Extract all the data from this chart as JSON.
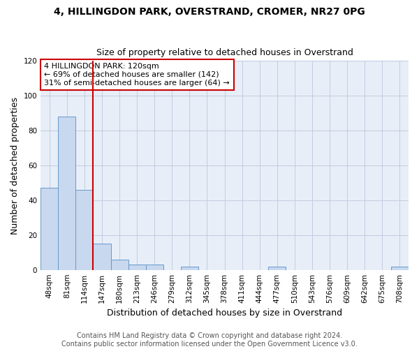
{
  "title": "4, HILLINGDON PARK, OVERSTRAND, CROMER, NR27 0PG",
  "subtitle": "Size of property relative to detached houses in Overstrand",
  "xlabel": "Distribution of detached houses by size in Overstrand",
  "ylabel": "Number of detached properties",
  "bin_labels": [
    "48sqm",
    "81sqm",
    "114sqm",
    "147sqm",
    "180sqm",
    "213sqm",
    "246sqm",
    "279sqm",
    "312sqm",
    "345sqm",
    "378sqm",
    "411sqm",
    "444sqm",
    "477sqm",
    "510sqm",
    "543sqm",
    "576sqm",
    "609sqm",
    "642sqm",
    "675sqm",
    "708sqm"
  ],
  "bar_values": [
    47,
    88,
    46,
    15,
    6,
    3,
    3,
    0,
    2,
    0,
    0,
    0,
    0,
    2,
    0,
    0,
    0,
    0,
    0,
    0,
    2
  ],
  "bar_color": "#c8d8ee",
  "bar_edge_color": "#6699cc",
  "vline_color": "#cc0000",
  "ylim": [
    0,
    120
  ],
  "yticks": [
    0,
    20,
    40,
    60,
    80,
    100,
    120
  ],
  "annotation_line1": "4 HILLINGDON PARK: 120sqm",
  "annotation_line2": "← 69% of detached houses are smaller (142)",
  "annotation_line3": "31% of semi-detached houses are larger (64) →",
  "annotation_box_color": "#ffffff",
  "annotation_border_color": "#cc0000",
  "footer_line1": "Contains HM Land Registry data © Crown copyright and database right 2024.",
  "footer_line2": "Contains public sector information licensed under the Open Government Licence v3.0.",
  "background_color": "#ffffff",
  "plot_bg_color": "#e8eef8",
  "grid_color": "#c0cce0",
  "title_fontsize": 10,
  "subtitle_fontsize": 9,
  "axis_label_fontsize": 9,
  "tick_fontsize": 7.5,
  "footer_fontsize": 7,
  "annotation_fontsize": 8
}
